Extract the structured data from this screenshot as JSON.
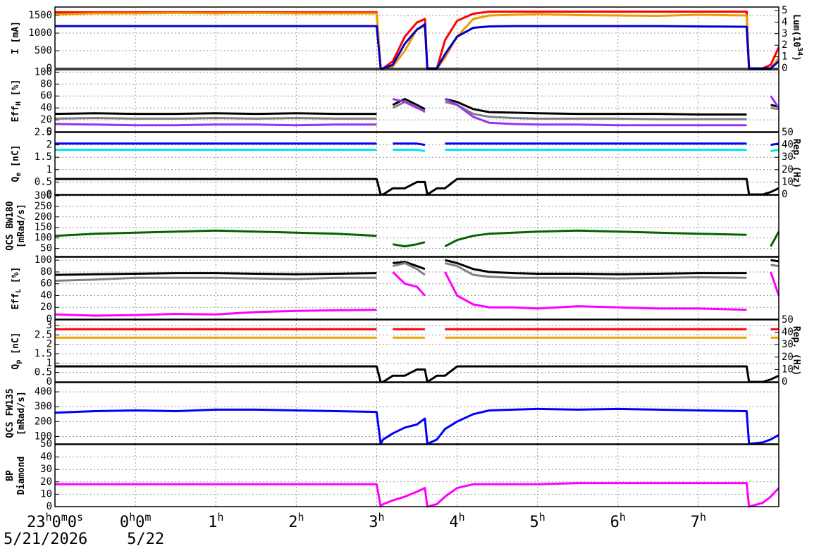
{
  "chart_data": {
    "type": "line",
    "x": [
      0,
      0.5,
      1,
      1.5,
      2,
      2.5,
      3,
      3.5,
      4,
      4.05,
      4.08,
      4.2,
      4.35,
      4.5,
      4.6,
      4.63,
      4.75,
      4.85,
      5,
      5.2,
      5.4,
      5.7,
      6,
      6.5,
      7,
      7.5,
      8,
      8.6,
      8.63,
      8.8,
      8.9,
      9
    ],
    "xlim": [
      0,
      9
    ],
    "xticks": [
      {
        "value": 0,
        "label": "23h0m0s"
      },
      {
        "value": 1,
        "label": "0h0m"
      },
      {
        "value": 2,
        "label": "1h"
      },
      {
        "value": 3,
        "label": "2h"
      },
      {
        "value": 4,
        "label": "3h"
      },
      {
        "value": 5,
        "label": "4h"
      },
      {
        "value": 6,
        "label": "5h"
      },
      {
        "value": 7,
        "label": "6h"
      },
      {
        "value": 8,
        "label": "7h"
      }
    ],
    "dates": [
      "5/21/2026",
      "5/22"
    ],
    "grid": true,
    "panels": [
      {
        "ylabel": {
          "lines": [
            [
              "I [mA]"
            ]
          ]
        },
        "ylim": [
          0,
          1740
        ],
        "yticks": [
          0,
          500,
          1000,
          1500
        ],
        "y2label": {
          "lines": [
            [
              "Lum(10",
              "34",
              ")"
            ]
          ],
          "script": "super"
        },
        "y2lim": [
          0,
          5.3
        ],
        "y2ticks": [
          0,
          1,
          2,
          3,
          4,
          5
        ],
        "series": [
          {
            "color": "#ff0000",
            "values": [
              1590,
              1590,
              1590,
              1590,
              1590,
              1590,
              1590,
              1590,
              1590,
              0,
              0,
              200,
              900,
              1300,
              1400,
              0,
              0,
              800,
              1350,
              1550,
              1610,
              1610,
              1610,
              1610,
              1610,
              1610,
              1610,
              1610,
              0,
              0,
              100,
              600
            ]
          },
          {
            "color": "#e8a000",
            "values": [
              1530,
              1560,
              1560,
              1570,
              1560,
              1570,
              1560,
              1560,
              1560,
              0,
              0,
              50,
              500,
              1100,
              1200,
              0,
              0,
              300,
              900,
              1400,
              1500,
              1520,
              1540,
              1510,
              1500,
              1490,
              1520,
              1500,
              0,
              0,
              0,
              300
            ]
          },
          {
            "color": "#0000cc",
            "values": [
              1200,
              1200,
              1200,
              1200,
              1200,
              1200,
              1200,
              1200,
              1200,
              0,
              0,
              100,
              700,
              1100,
              1250,
              0,
              0,
              400,
              900,
              1150,
              1190,
              1200,
              1200,
              1200,
              1200,
              1200,
              1190,
              1180,
              0,
              0,
              0,
              200
            ]
          }
        ]
      },
      {
        "ylabel": {
          "lines": [
            [
              "Eff",
              "H",
              " [%]"
            ]
          ],
          "script": "sub"
        },
        "ylim": [
          0,
          104
        ],
        "yticks": [
          0,
          20,
          40,
          60,
          80,
          100
        ],
        "series": [
          {
            "color": "#000000",
            "values": [
              30,
              31,
              30,
              30,
              31,
              30,
              31,
              30,
              30,
              null,
              null,
              45,
              55,
              45,
              38,
              null,
              null,
              55,
              50,
              38,
              33,
              32,
              31,
              30,
              30,
              30,
              29,
              29,
              null,
              null,
              45,
              42
            ]
          },
          {
            "color": "#808080",
            "values": [
              22,
              23,
              22,
              22,
              23,
              22,
              23,
              22,
              22,
              null,
              null,
              40,
              50,
              42,
              33,
              null,
              null,
              50,
              45,
              30,
              25,
              23,
              22,
              22,
              22,
              21,
              21,
              21,
              null,
              null,
              40,
              38
            ]
          },
          {
            "color": "#9933ee",
            "values": [
              13,
              12,
              11,
              11,
              12,
              12,
              11,
              12,
              12,
              null,
              null,
              55,
              50,
              40,
              35,
              null,
              null,
              55,
              45,
              25,
              15,
              13,
              12,
              12,
              11,
              11,
              11,
              11,
              null,
              null,
              60,
              40
            ]
          }
        ]
      },
      {
        "ylabel": {
          "lines": [
            [
              "Q",
              "e",
              " [nC]"
            ]
          ],
          "script": "sub"
        },
        "ylim": [
          0,
          2.5
        ],
        "yticks": [
          0,
          0.5,
          1,
          1.5,
          2,
          2.5
        ],
        "y2label": {
          "lines": [
            [
              "Rep. (Hz)"
            ]
          ]
        },
        "y2lim": [
          0,
          50
        ],
        "y2ticks": [
          0,
          10,
          20,
          30,
          40,
          50
        ],
        "series": [
          {
            "color": "#0000ff",
            "values": [
              2.05,
              2.05,
              2.05,
              2.05,
              2.05,
              2.05,
              2.05,
              2.05,
              2.05,
              null,
              null,
              2.05,
              2.05,
              2.05,
              2.0,
              null,
              null,
              2.05,
              2.05,
              2.05,
              2.05,
              2.05,
              2.05,
              2.05,
              2.05,
              2.05,
              2.05,
              2.05,
              null,
              null,
              2.0,
              2.05
            ]
          },
          {
            "color": "#00e5ee",
            "values": [
              1.8,
              1.8,
              1.8,
              1.8,
              1.8,
              1.8,
              1.8,
              1.8,
              1.8,
              null,
              null,
              1.8,
              1.8,
              1.8,
              1.75,
              null,
              null,
              1.8,
              1.8,
              1.8,
              1.8,
              1.8,
              1.8,
              1.8,
              1.8,
              1.8,
              1.8,
              1.8,
              null,
              null,
              1.75,
              1.8
            ]
          },
          {
            "color": "#000000",
            "axis": "y2",
            "values": [
              12.5,
              12.5,
              12.5,
              12.5,
              12.5,
              12.5,
              12.5,
              12.5,
              12.5,
              0,
              0,
              5,
              5,
              10,
              10,
              0,
              5,
              5,
              12.5,
              12.5,
              12.5,
              12.5,
              12.5,
              12.5,
              12.5,
              12.5,
              12.5,
              12.5,
              0,
              0,
              2,
              5
            ]
          }
        ]
      },
      {
        "ylabel": {
          "lines": [
            [
              "QCS BW180"
            ],
            [
              "[mRad/s]"
            ]
          ]
        },
        "ylim": [
          12,
          303
        ],
        "yticks": [
          50,
          100,
          150,
          200,
          250,
          300
        ],
        "series": [
          {
            "color": "#006400",
            "values": [
              110,
              120,
              125,
              130,
              135,
              130,
              125,
              120,
              110,
              null,
              null,
              70,
              60,
              70,
              80,
              null,
              null,
              60,
              90,
              110,
              120,
              125,
              130,
              135,
              130,
              125,
              120,
              115,
              null,
              null,
              60,
              130
            ]
          }
        ]
      },
      {
        "ylabel": {
          "lines": [
            [
              "Eff",
              "L",
              " [%]"
            ]
          ],
          "script": "sub"
        },
        "ylim": [
          0,
          105
        ],
        "yticks": [
          0,
          20,
          40,
          60,
          80,
          100
        ],
        "series": [
          {
            "color": "#000000",
            "values": [
              75,
              76,
              77,
              78,
              78,
              77,
              76,
              77,
              78,
              null,
              null,
              95,
              97,
              90,
              85,
              null,
              null,
              100,
              95,
              85,
              80,
              78,
              77,
              77,
              76,
              77,
              78,
              78,
              null,
              null,
              100,
              98
            ]
          },
          {
            "color": "#808080",
            "values": [
              65,
              67,
              70,
              70,
              70,
              69,
              68,
              70,
              70,
              null,
              null,
              90,
              95,
              85,
              75,
              null,
              null,
              95,
              90,
              75,
              72,
              70,
              70,
              70,
              69,
              70,
              71,
              70,
              null,
              null,
              92,
              90
            ]
          },
          {
            "color": "#ff00ff",
            "values": [
              8,
              6,
              7,
              9,
              8,
              12,
              14,
              15,
              16,
              null,
              null,
              80,
              60,
              55,
              40,
              null,
              null,
              80,
              40,
              25,
              20,
              20,
              18,
              22,
              20,
              18,
              18,
              16,
              null,
              null,
              80,
              40
            ]
          }
        ]
      },
      {
        "ylabel": {
          "lines": [
            [
              "Q",
              "p",
              " [nC]"
            ]
          ],
          "script": "sub"
        },
        "ylim": [
          0,
          3.3
        ],
        "yticks": [
          0,
          0.5,
          1,
          1.5,
          2,
          2.5,
          3
        ],
        "y2label": {
          "lines": [
            [
              "Rep. (Hz)"
            ]
          ]
        },
        "y2lim": [
          0,
          50
        ],
        "y2ticks": [
          0,
          10,
          20,
          30,
          40,
          50
        ],
        "series": [
          {
            "color": "#ff0000",
            "values": [
              2.8,
              2.8,
              2.8,
              2.8,
              2.8,
              2.8,
              2.8,
              2.8,
              2.8,
              null,
              null,
              2.8,
              2.8,
              2.8,
              2.8,
              null,
              null,
              2.8,
              2.8,
              2.8,
              2.8,
              2.8,
              2.8,
              2.8,
              2.8,
              2.8,
              2.8,
              2.8,
              null,
              null,
              2.8,
              2.8
            ]
          },
          {
            "color": "#f0a000",
            "values": [
              2.35,
              2.35,
              2.35,
              2.35,
              2.35,
              2.35,
              2.35,
              2.35,
              2.35,
              null,
              null,
              2.35,
              2.35,
              2.35,
              2.35,
              null,
              null,
              2.35,
              2.35,
              2.35,
              2.35,
              2.35,
              2.35,
              2.35,
              2.35,
              2.35,
              2.35,
              2.35,
              null,
              null,
              2.35,
              2.35
            ]
          },
          {
            "color": "#000000",
            "axis": "y2",
            "values": [
              12.5,
              12.5,
              12.5,
              12.5,
              12.5,
              12.5,
              12.5,
              12.5,
              12.5,
              0,
              0,
              5,
              5,
              10,
              10,
              0,
              5,
              5,
              12.5,
              12.5,
              12.5,
              12.5,
              12.5,
              12.5,
              12.5,
              12.5,
              12.5,
              12.5,
              0,
              0,
              2,
              5
            ]
          }
        ]
      },
      {
        "ylabel": {
          "lines": [
            [
              "QCS FW135"
            ],
            [
              "[mRad/s]"
            ]
          ]
        },
        "ylim": [
          50,
          462
        ],
        "yticks": [
          50,
          100,
          200,
          300,
          400
        ],
        "series": [
          {
            "color": "#0000ff",
            "values": [
              260,
              270,
              275,
              270,
              280,
              280,
              275,
              270,
              265,
              50,
              80,
              120,
              160,
              180,
              220,
              50,
              80,
              150,
              200,
              250,
              275,
              280,
              285,
              280,
              285,
              280,
              275,
              270,
              50,
              60,
              80,
              110
            ]
          }
        ]
      },
      {
        "ylabel": {
          "lines": [
            [
              "BP"
            ],
            [
              "Diamond"
            ]
          ]
        },
        "ylim": [
          0,
          50
        ],
        "yticks": [
          0,
          10,
          20,
          30,
          40
        ],
        "series": [
          {
            "color": "#ff00ff",
            "values": [
              18,
              18,
              18,
              18,
              18,
              18,
              18,
              18,
              18,
              0,
              2,
              5,
              8,
              12,
              15,
              0,
              2,
              8,
              15,
              18,
              18,
              18,
              18,
              19,
              19,
              19,
              19,
              19,
              0,
              3,
              8,
              15
            ]
          }
        ]
      }
    ]
  }
}
